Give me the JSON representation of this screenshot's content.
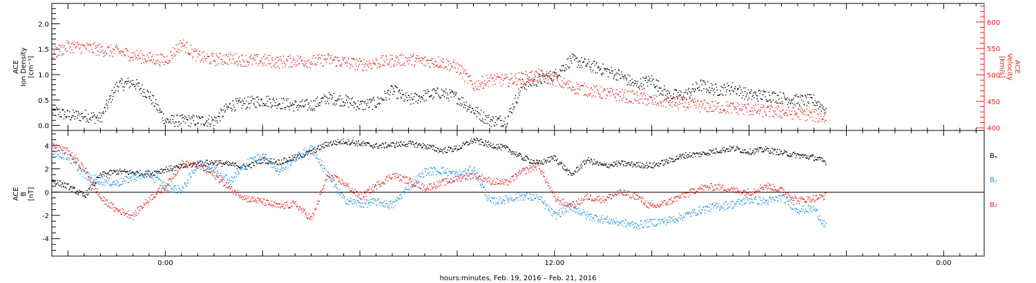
{
  "colors": {
    "black": "#000000",
    "red": "#e8201c",
    "blue": "#1f8fe0"
  },
  "xaxis": {
    "label": "hours:minutes, Feb. 19, 2016 – Feb. 21, 2016",
    "range_hours": [
      -14,
      101
    ],
    "tick_labels": [
      {
        "hour": 0,
        "label": "0:00"
      },
      {
        "hour": 48,
        "label": "12:00"
      },
      {
        "hour": 96,
        "label": "0:00"
      }
    ],
    "data_end_hour": 81.5
  },
  "chart_data": [
    {
      "type": "scatter",
      "panel": "top",
      "ylabel_left": [
        "ACE",
        "Ion Density",
        "[cm⁻³]"
      ],
      "ylabel_right": [
        "ACE",
        "Velocity",
        "[km/s]"
      ],
      "ylim_left": [
        -0.1,
        2.4
      ],
      "ylim_right": [
        395,
        635
      ],
      "yticks_left": [
        "0.0",
        "0.5",
        "1.0",
        "1.5",
        "2.0"
      ],
      "yticks_right": [
        "400",
        "450",
        "500",
        "550",
        "600"
      ],
      "series": [
        {
          "axis": "left",
          "color": "black",
          "x": [
            -14,
            -12,
            -10,
            -8,
            -6,
            -4,
            -2,
            0,
            2,
            4,
            6,
            8,
            10,
            12,
            14,
            16,
            18,
            20,
            22,
            24,
            26,
            28,
            30,
            32,
            34,
            36,
            38,
            40,
            42,
            44,
            46,
            48,
            50,
            52,
            54,
            56,
            58,
            60,
            62,
            64,
            66,
            68,
            70,
            72,
            74,
            76,
            78,
            80,
            81.5
          ],
          "y": [
            0.3,
            0.2,
            0.2,
            0.15,
            0.8,
            0.85,
            0.6,
            0.1,
            0.1,
            0.1,
            0.1,
            0.4,
            0.45,
            0.5,
            0.45,
            0.4,
            0.4,
            0.55,
            0.5,
            0.4,
            0.45,
            0.7,
            0.5,
            0.6,
            0.65,
            0.55,
            0.3,
            0.1,
            0.1,
            0.8,
            0.9,
            1.0,
            1.3,
            1.2,
            1.1,
            1.0,
            0.8,
            0.9,
            0.6,
            0.6,
            0.8,
            0.7,
            0.75,
            0.6,
            0.6,
            0.55,
            0.5,
            0.5,
            0.3
          ],
          "scatter": 0.12
        },
        {
          "axis": "right",
          "color": "red",
          "x": [
            -14,
            -12,
            -10,
            -8,
            -6,
            -4,
            -2,
            0,
            2,
            4,
            6,
            8,
            10,
            12,
            14,
            16,
            18,
            20,
            22,
            24,
            26,
            28,
            30,
            32,
            34,
            36,
            38,
            40,
            42,
            44,
            46,
            48,
            50,
            52,
            54,
            56,
            58,
            60,
            62,
            64,
            66,
            68,
            70,
            72,
            74,
            76,
            78,
            80,
            81.5
          ],
          "y": [
            540,
            555,
            552,
            548,
            545,
            538,
            532,
            528,
            560,
            535,
            530,
            532,
            528,
            528,
            525,
            528,
            526,
            530,
            525,
            520,
            524,
            528,
            530,
            526,
            525,
            515,
            480,
            492,
            490,
            495,
            500,
            492,
            478,
            472,
            466,
            462,
            458,
            452,
            450,
            446,
            442,
            440,
            438,
            436,
            432,
            430,
            428,
            424,
            418
          ],
          "scatter": 12
        }
      ]
    },
    {
      "type": "scatter",
      "panel": "bottom",
      "ylabel_left": [
        "ACE",
        "B",
        "[nT]"
      ],
      "ylim": [
        -5.5,
        5.3
      ],
      "yticks": [
        "-4",
        "-2",
        "0",
        "2",
        "4"
      ],
      "zero_line": true,
      "legend": [
        {
          "text": "Bₓ",
          "color": "black"
        },
        {
          "text": "Bᵧ",
          "color": "blue"
        },
        {
          "text": "B₂",
          "color": "red"
        }
      ],
      "series": [
        {
          "name": "Bx",
          "color": "black",
          "x": [
            -14,
            -12,
            -10,
            -8,
            -6,
            -4,
            -2,
            0,
            2,
            4,
            6,
            8,
            10,
            12,
            14,
            16,
            18,
            20,
            22,
            24,
            26,
            28,
            30,
            32,
            34,
            36,
            38,
            40,
            42,
            44,
            46,
            48,
            50,
            52,
            54,
            56,
            58,
            60,
            62,
            64,
            66,
            68,
            70,
            72,
            74,
            76,
            78,
            80,
            81.5
          ],
          "y": [
            1.0,
            0.5,
            -0.3,
            1.5,
            1.8,
            1.7,
            1.6,
            2.0,
            2.2,
            2.5,
            2.6,
            2.4,
            2.2,
            2.8,
            2.6,
            3.0,
            3.5,
            4.2,
            4.4,
            4.2,
            4.0,
            4.1,
            4.2,
            4.0,
            3.6,
            3.8,
            4.5,
            4.1,
            3.8,
            3.0,
            2.5,
            3.0,
            1.5,
            2.8,
            2.3,
            2.5,
            2.4,
            2.3,
            2.7,
            3.2,
            3.3,
            3.6,
            3.8,
            3.5,
            3.7,
            3.4,
            3.2,
            3.0,
            2.6
          ],
          "scatter": 0.25
        },
        {
          "name": "By",
          "color": "blue",
          "x": [
            -14,
            -12,
            -10,
            -8,
            -6,
            -4,
            -2,
            0,
            2,
            4,
            6,
            8,
            10,
            12,
            14,
            16,
            18,
            20,
            22,
            24,
            26,
            28,
            30,
            32,
            34,
            36,
            38,
            40,
            42,
            44,
            46,
            48,
            50,
            52,
            54,
            56,
            58,
            60,
            62,
            64,
            66,
            68,
            70,
            72,
            74,
            76,
            78,
            80,
            81.5
          ],
          "y": [
            3.5,
            3.0,
            1.5,
            1.0,
            0.8,
            1.3,
            1.6,
            0.5,
            0.2,
            2.5,
            2.0,
            1.0,
            2.5,
            3.2,
            1.8,
            3.0,
            3.8,
            1.5,
            -0.6,
            -1.0,
            -0.8,
            -1.1,
            0.5,
            1.8,
            1.9,
            1.5,
            2.0,
            -0.8,
            -0.6,
            -0.3,
            -0.5,
            -2.0,
            -1.2,
            -2.0,
            -2.3,
            -2.6,
            -2.8,
            -2.6,
            -2.4,
            -2.0,
            -1.5,
            -1.2,
            -1.0,
            -0.6,
            -0.8,
            -0.4,
            -1.5,
            -1.4,
            -3.0
          ],
          "scatter": 0.35
        },
        {
          "name": "Bz",
          "color": "red",
          "x": [
            -14,
            -12,
            -10,
            -8,
            -6,
            -4,
            -2,
            0,
            2,
            4,
            6,
            8,
            10,
            12,
            14,
            16,
            18,
            20,
            22,
            24,
            26,
            28,
            30,
            32,
            34,
            36,
            38,
            40,
            42,
            44,
            46,
            48,
            50,
            52,
            54,
            56,
            58,
            60,
            62,
            64,
            66,
            68,
            70,
            72,
            74,
            76,
            78,
            80,
            81.5
          ],
          "y": [
            4.0,
            3.5,
            2.0,
            -0.5,
            -1.5,
            -2.0,
            -0.5,
            0.5,
            2.5,
            2.3,
            1.5,
            0.3,
            -0.5,
            -0.8,
            -1.2,
            -1.0,
            -2.3,
            1.5,
            0.8,
            -0.4,
            0.6,
            1.5,
            1.0,
            0.4,
            0.8,
            1.2,
            1.5,
            1.0,
            0.8,
            1.8,
            2.3,
            -0.5,
            -1.2,
            -0.4,
            -0.6,
            0.0,
            -0.3,
            -1.3,
            -0.8,
            -0.2,
            0.4,
            0.5,
            0.2,
            0.0,
            0.6,
            0.2,
            -0.7,
            -0.5,
            -0.3
          ],
          "scatter": 0.3
        }
      ]
    }
  ]
}
